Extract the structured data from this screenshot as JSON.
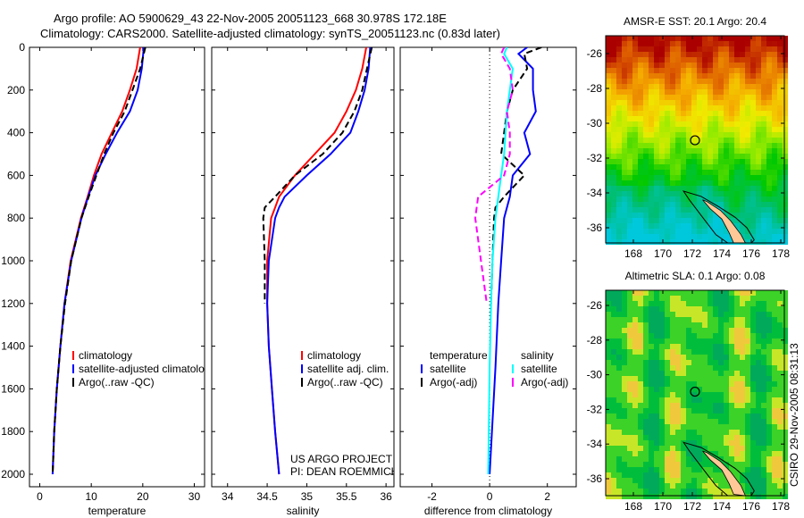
{
  "title_line1": "Argo profile: AO 5900629_43 22-Nov-2005 20051123_668 30.978S 172.18E",
  "title_line2": "Climatology: CARS2000. Satellite-adjusted climatology: synTS_20051123.nc (0.83d later)",
  "side_stamp": "CSIRO 29-Nov-2005 08:31:13",
  "colors": {
    "climatology": "#ff0000",
    "satellite": "#0000ff",
    "argo": "#000000",
    "sal_satellite": "#00ffff",
    "sal_argo": "#ff00ff",
    "land": "#ffc896"
  },
  "chart_data": [
    {
      "type": "line",
      "xlabel": "temperature",
      "xlim": [
        -2,
        32
      ],
      "ylim": [
        0,
        2050
      ],
      "xticks": [
        "0",
        "10",
        "20",
        "30"
      ],
      "yticks": [
        "0",
        "200",
        "400",
        "600",
        "800",
        "1000",
        "1200",
        "1400",
        "1600",
        "1800",
        "2000"
      ],
      "depth": [
        0,
        100,
        200,
        300,
        400,
        500,
        600,
        700,
        800,
        1000,
        1200,
        1400,
        1600,
        1800,
        2000
      ],
      "series": [
        {
          "name": "climatology",
          "style": "solid",
          "color": "#ff0000",
          "values": [
            19.5,
            18.8,
            17.5,
            16,
            14,
            12,
            10.5,
            9.3,
            8,
            6,
            4.8,
            4,
            3.3,
            2.8,
            2.5
          ]
        },
        {
          "name": "satellite-adjusted climatology",
          "style": "solid",
          "color": "#0000ff",
          "values": [
            20.2,
            19.8,
            19,
            17.5,
            15,
            12.8,
            10.8,
            9.4,
            8.1,
            6.1,
            4.8,
            4,
            3.3,
            2.8,
            2.5
          ]
        },
        {
          "name": "Argo(..raw -QC)",
          "style": "dashed",
          "color": "#000000",
          "values": [
            20.5,
            19.5,
            18,
            16.5,
            14.3,
            12.5,
            11,
            9.5,
            8.1,
            6.1,
            4.9,
            4,
            3.3,
            2.8,
            2.5
          ]
        }
      ],
      "legend": [
        "climatology",
        "satellite-adjusted climatology",
        "Argo(..raw -QC)"
      ]
    },
    {
      "type": "line",
      "xlabel": "salinity",
      "xlim": [
        33.8,
        36.1
      ],
      "ylim": [
        0,
        2050
      ],
      "xticks": [
        "34",
        "34.5",
        "35",
        "35.5",
        "36"
      ],
      "depth": [
        0,
        100,
        200,
        300,
        400,
        500,
        600,
        700,
        750,
        800,
        1000,
        1200,
        1400,
        1600,
        1800,
        2000
      ],
      "series": [
        {
          "name": "climatology",
          "style": "solid",
          "color": "#ff0000",
          "values": [
            35.75,
            35.7,
            35.62,
            35.5,
            35.35,
            35.1,
            34.85,
            34.65,
            34.6,
            34.55,
            34.5,
            34.5,
            34.52,
            34.56,
            34.6,
            34.65
          ]
        },
        {
          "name": "satellite adj. clim.",
          "style": "solid",
          "color": "#0000ff",
          "values": [
            35.8,
            35.78,
            35.73,
            35.65,
            35.55,
            35.3,
            35.0,
            34.72,
            34.65,
            34.6,
            34.52,
            34.5,
            34.52,
            34.56,
            34.6,
            34.65
          ]
        },
        {
          "name": "Argo(..raw -QC)",
          "style": "dashed",
          "color": "#000000",
          "values": [
            35.82,
            35.76,
            35.7,
            35.6,
            35.45,
            35.2,
            34.85,
            34.6,
            34.47,
            34.45,
            34.47,
            34.47,
            null,
            null,
            null,
            null
          ]
        }
      ],
      "legend": [
        "climatology",
        "satellite adj. clim.",
        "Argo(..raw -QC)"
      ],
      "annotation": [
        "US ARGO PROJECT",
        "PI: DEAN ROEMMICH"
      ]
    },
    {
      "type": "line",
      "xlabel": "difference from climatology",
      "xlim": [
        -3.1,
        3.0
      ],
      "ylim": [
        0,
        2050
      ],
      "xticks": [
        "-2",
        "0",
        "2"
      ],
      "depth": [
        0,
        30,
        100,
        200,
        300,
        400,
        500,
        600,
        700,
        750,
        800,
        1000,
        1200,
        1500,
        2000
      ],
      "series": [
        {
          "name": "temperature satellite",
          "style": "solid",
          "color": "#0000ff",
          "values": [
            1.3,
            1.0,
            1.5,
            1.5,
            1.6,
            1.2,
            1.4,
            0.8,
            0.7,
            0.6,
            0.5,
            0.4,
            0.3,
            0.2,
            0.0
          ]
        },
        {
          "name": "temperature Argo(-adj)",
          "style": "dashed",
          "color": "#000000",
          "values": [
            1.8,
            1.2,
            1.3,
            0.8,
            0.6,
            0.5,
            0.4,
            1.2,
            0.5,
            0.2,
            0.15,
            0.1,
            0.05,
            null,
            null
          ]
        },
        {
          "name": "salinity satellite",
          "style": "solid",
          "color": "#00ffff",
          "values": [
            0.6,
            0.5,
            0.8,
            0.7,
            0.6,
            0.55,
            0.5,
            0.4,
            0.3,
            0.25,
            0.2,
            0.1,
            0.05,
            0.0,
            -0.05
          ]
        },
        {
          "name": "salinity Argo(-adj)",
          "style": "dashed",
          "color": "#ff00ff",
          "values": [
            0.5,
            0.4,
            0.7,
            0.8,
            0.6,
            0.7,
            0.7,
            0.5,
            -0.4,
            -0.45,
            -0.5,
            -0.3,
            -0.1,
            null,
            null
          ]
        }
      ],
      "legend_titles": [
        "temperature",
        "salinity"
      ],
      "legend": [
        "satellite",
        "Argo(-adj)",
        "satellite",
        "Argo(-adj)"
      ]
    }
  ],
  "maps": [
    {
      "title": "AMSR-E SST: 20.1 Argo: 20.4",
      "kind": "sst",
      "xticks": [
        "168",
        "170",
        "172",
        "174",
        "176",
        "178"
      ],
      "yticks": [
        "-26",
        "-28",
        "-30",
        "-32",
        "-34",
        "-36"
      ],
      "profile_lon": 172.18,
      "profile_lat": -30.978
    },
    {
      "title": "Altimetric SLA: 0.1 Argo: 0.08",
      "kind": "sla",
      "xticks": [
        "168",
        "170",
        "172",
        "174",
        "176",
        "178"
      ],
      "yticks": [
        "-26",
        "-28",
        "-30",
        "-32",
        "-34",
        "-36"
      ],
      "profile_lon": 172.18,
      "profile_lat": -30.978
    }
  ]
}
